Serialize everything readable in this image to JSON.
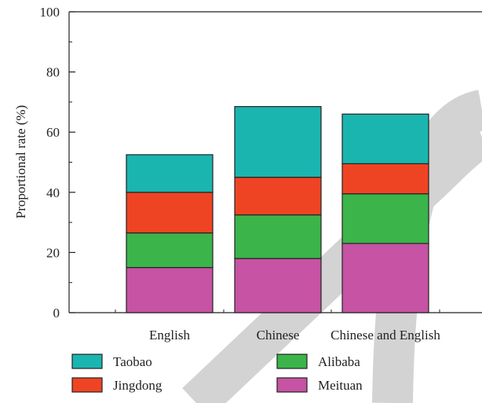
{
  "chart_data": {
    "type": "bar",
    "stacked": true,
    "categories": [
      "English",
      "Chinese",
      "Chinese and English"
    ],
    "series": [
      {
        "name": "Meituan",
        "values": [
          15,
          18,
          23
        ],
        "color": "#c653a3"
      },
      {
        "name": "Alibaba",
        "values": [
          11.5,
          14.5,
          16.5
        ],
        "color": "#3bb44a"
      },
      {
        "name": "Jingdong",
        "values": [
          13.5,
          12.5,
          10
        ],
        "color": "#ef4423"
      },
      {
        "name": "Taobao",
        "values": [
          12.5,
          23.5,
          16.5
        ],
        "color": "#1bb5b0"
      }
    ],
    "ylabel": "Proportional rate (%)",
    "xlabel": "",
    "ylim": [
      0,
      100
    ],
    "yticks": [
      0,
      20,
      40,
      60,
      80,
      100
    ],
    "legend": {
      "placement": "bottom",
      "order": [
        "Taobao",
        "Alibaba",
        "Jingdong",
        "Meituan"
      ]
    },
    "grid": false,
    "watermark_color": "#d3d3d3"
  }
}
